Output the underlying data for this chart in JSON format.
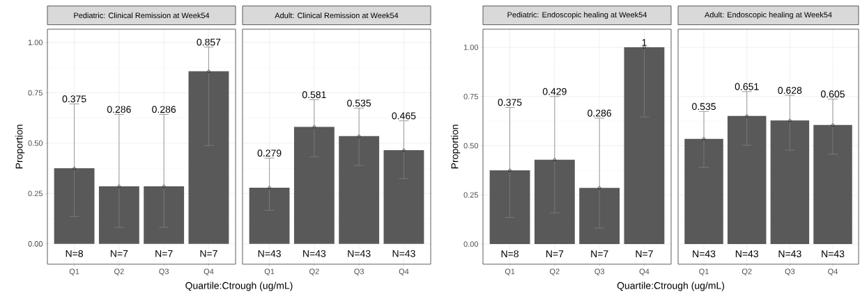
{
  "chart_data": [
    {
      "type": "bar",
      "title": "Pediatric: Clinical Remission at Week54",
      "xlabel": "Quartile:Ctrough (ug/mL)",
      "ylabel": "Proportion",
      "categories": [
        "Q1",
        "Q2",
        "Q3",
        "Q4"
      ],
      "series": [
        {
          "type": "bar",
          "color": "#595959",
          "values": [
            0.375,
            0.286,
            0.286,
            0.857
          ],
          "errors": [
            [
              0.136,
              0.695
            ],
            [
              0.082,
              0.643
            ],
            [
              0.082,
              0.643
            ],
            [
              0.488,
              0.977
            ]
          ]
        },
        {
          "type": "scatter",
          "color": "#000000",
          "marker": "circle",
          "x": [
            "Q1",
            "Q2",
            "Q3",
            "Q4"
          ],
          "values": [
            0.375,
            0.286,
            0.286,
            0.857
          ]
        }
      ],
      "annotations": [
        "N=8",
        "N=7",
        "N=7",
        "N=7",
        {
          "text": "0.375",
          "x": "Q1",
          "y": 0.695
        },
        {
          "text": "0.286",
          "x": "Q2",
          "y": 0.643
        },
        {
          "text": "0.286",
          "x": "Q3",
          "y": 0.643
        },
        {
          "text": "0.857",
          "x": "Q4",
          "y": 0.977
        }
      ],
      "ylim": [
        -0.101,
        1.066
      ],
      "yticks": [
        {
          "value": 0,
          "label": "0.00"
        },
        {
          "value": 0.25,
          "label": "0.25"
        },
        {
          "value": 0.5,
          "label": "0.50"
        },
        {
          "value": 0.75,
          "label": "0.75"
        },
        {
          "value": 1,
          "label": "1.00"
        }
      ],
      "grid": true
    },
    {
      "type": "bar",
      "title": "Adult:  Clinical Remission at Week54",
      "categories": [
        "Q1",
        "Q2",
        "Q3",
        "Q4"
      ],
      "series": [
        {
          "type": "bar",
          "color": "#595959",
          "values": [
            0.279,
            0.581,
            0.535,
            0.465
          ],
          "errors": [
            [
              0.167,
              0.426
            ],
            [
              0.433,
              0.716
            ],
            [
              0.389,
              0.674
            ],
            [
              0.324,
              0.611
            ]
          ]
        },
        {
          "type": "scatter",
          "color": "#000000",
          "marker": "circle",
          "x": [
            "Q1",
            "Q2",
            "Q3",
            "Q4"
          ],
          "values": [
            0.279,
            0.581,
            0.535,
            0.465
          ]
        }
      ],
      "annotations": [
        "N=43",
        "N=43",
        "N=43",
        "N=43",
        {
          "text": "0.279",
          "x": "Q1",
          "y": 0.426
        },
        {
          "text": "0.581",
          "x": "Q2",
          "y": 0.716
        },
        {
          "text": "0.535",
          "x": "Q3",
          "y": 0.674
        },
        {
          "text": "0.465",
          "x": "Q4",
          "y": 0.611
        }
      ],
      "ylim": [
        -0.101,
        1.066
      ],
      "yticks": [
        {
          "value": 0,
          "label": null
        },
        {
          "value": 0.25,
          "label": null
        },
        {
          "value": 0.5,
          "label": null
        },
        {
          "value": 0.75,
          "label": null
        },
        {
          "value": 1,
          "label": null
        }
      ],
      "tick_labels": "x",
      "grid": true
    },
    {
      "type": "bar",
      "title": "Pediatric: Endoscopic healing at Week54",
      "xlabel": "Quartile:Ctrough (ug/mL)",
      "ylabel": "Proportion",
      "categories": [
        "Q1",
        "Q2",
        "Q3",
        "Q4"
      ],
      "series": [
        {
          "type": "bar",
          "color": "#595959",
          "values": [
            0.375,
            0.429,
            0.286,
            1
          ],
          "errors": [
            [
              0.135,
              0.695
            ],
            [
              0.159,
              0.75
            ],
            [
              0.081,
              0.64
            ],
            [
              0.646,
              1
            ]
          ]
        },
        {
          "type": "scatter",
          "color": "#000000",
          "marker": "circle",
          "x": [
            "Q1",
            "Q2",
            "Q3",
            "Q4"
          ],
          "values": [
            0.375,
            0.429,
            0.286,
            1
          ]
        }
      ],
      "annotations": [
        "N=8",
        "N=7",
        "N=7",
        "N=7",
        {
          "text": "0.375",
          "x": "Q1",
          "y": 0.695
        },
        {
          "text": "0.429",
          "x": "Q2",
          "y": 0.75
        },
        {
          "text": "0.286",
          "x": "Q3",
          "y": 0.64
        },
        {
          "text": "1",
          "x": "Q4",
          "y": 1
        }
      ],
      "ylim": [
        -0.102,
        1.092
      ],
      "yticks": [
        {
          "value": 0,
          "label": "0.00"
        },
        {
          "value": 0.25,
          "label": "0.25"
        },
        {
          "value": 0.5,
          "label": "0.50"
        },
        {
          "value": 0.75,
          "label": "0.75"
        },
        {
          "value": 1,
          "label": "1.00"
        }
      ],
      "grid": true
    },
    {
      "type": "bar",
      "title": "Adult:  Endoscopic healing at Week54",
      "categories": [
        "Q1",
        "Q2",
        "Q3",
        "Q4"
      ],
      "series": [
        {
          "type": "bar",
          "color": "#595959",
          "values": [
            0.535,
            0.651,
            0.628,
            0.605
          ],
          "errors": [
            [
              0.39,
              0.674
            ],
            [
              0.502,
              0.775
            ],
            [
              0.477,
              0.756
            ],
            [
              0.457,
              0.737
            ]
          ]
        },
        {
          "type": "scatter",
          "color": "#000000",
          "marker": "circle",
          "x": [
            "Q1",
            "Q2",
            "Q3",
            "Q4"
          ],
          "values": [
            0.535,
            0.651,
            0.628,
            0.605
          ]
        }
      ],
      "annotations": [
        "N=43",
        "N=43",
        "N=43",
        "N=43",
        {
          "text": "0.535",
          "x": "Q1",
          "y": 0.674
        },
        {
          "text": "0.651",
          "x": "Q2",
          "y": 0.775
        },
        {
          "text": "0.628",
          "x": "Q3",
          "y": 0.756
        },
        {
          "text": "0.605",
          "x": "Q4",
          "y": 0.737
        }
      ],
      "ylim": [
        -0.102,
        1.092
      ],
      "yticks": [
        {
          "value": 0,
          "label": null
        },
        {
          "value": 0.25,
          "label": null
        },
        {
          "value": 0.5,
          "label": null
        },
        {
          "value": 0.75,
          "label": null
        },
        {
          "value": 1,
          "label": null
        }
      ],
      "tick_labels": "x",
      "grid": true
    }
  ]
}
